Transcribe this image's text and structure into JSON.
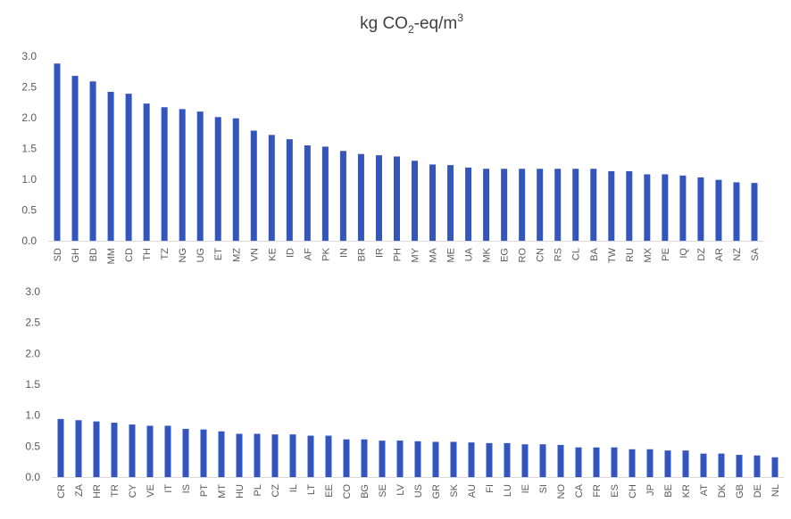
{
  "chart_data": [
    {
      "type": "bar",
      "title": "kg CO₂-eq/m³",
      "title_parts": {
        "pre": "kg CO",
        "sub": "2",
        "mid": "-eq/m",
        "sup": "3"
      },
      "ylim": [
        0,
        3.0
      ],
      "yticks": [
        "0.0",
        "0.5",
        "1.0",
        "1.5",
        "2.0",
        "2.5",
        "3.0"
      ],
      "grid": false,
      "bar_color": "#3355c0",
      "categories": [
        "SD",
        "GH",
        "BD",
        "MM",
        "CD",
        "TH",
        "TZ",
        "NG",
        "UG",
        "ET",
        "MZ",
        "VN",
        "KE",
        "ID",
        "AF",
        "PK",
        "IN",
        "BR",
        "IR",
        "PH",
        "MY",
        "MA",
        "ME",
        "UA",
        "MK",
        "EG",
        "RO",
        "CN",
        "RS",
        "CL",
        "BA",
        "TW",
        "RU",
        "MX",
        "PE",
        "IQ",
        "DZ",
        "AR",
        "NZ",
        "SA"
      ],
      "values": [
        2.88,
        2.68,
        2.59,
        2.42,
        2.39,
        2.23,
        2.17,
        2.14,
        2.1,
        2.01,
        1.99,
        1.79,
        1.72,
        1.65,
        1.55,
        1.53,
        1.46,
        1.41,
        1.39,
        1.37,
        1.3,
        1.24,
        1.23,
        1.19,
        1.17,
        1.17,
        1.17,
        1.17,
        1.17,
        1.17,
        1.17,
        1.13,
        1.13,
        1.08,
        1.08,
        1.06,
        1.03,
        0.99,
        0.95,
        0.94
      ]
    },
    {
      "type": "bar",
      "ylim": [
        0,
        3.0
      ],
      "yticks": [
        "0.0",
        "0.5",
        "1.0",
        "1.5",
        "2.0",
        "2.5",
        "3.0"
      ],
      "grid": false,
      "bar_color": "#3355c0",
      "categories": [
        "CR",
        "ZA",
        "HR",
        "TR",
        "CY",
        "VE",
        "IT",
        "IS",
        "PT",
        "MT",
        "HU",
        "PL",
        "CZ",
        "IL",
        "LT",
        "EE",
        "CO",
        "BG",
        "SE",
        "LV",
        "US",
        "GR",
        "SK",
        "AU",
        "FI",
        "LU",
        "IE",
        "SI",
        "NO",
        "CA",
        "FR",
        "ES",
        "CH",
        "JP",
        "BE",
        "KR",
        "AT",
        "DK",
        "GB",
        "DE",
        "NL"
      ],
      "values": [
        0.94,
        0.92,
        0.9,
        0.88,
        0.85,
        0.83,
        0.83,
        0.78,
        0.77,
        0.74,
        0.7,
        0.7,
        0.69,
        0.69,
        0.67,
        0.67,
        0.61,
        0.61,
        0.59,
        0.59,
        0.58,
        0.57,
        0.57,
        0.56,
        0.55,
        0.55,
        0.53,
        0.53,
        0.52,
        0.48,
        0.48,
        0.48,
        0.45,
        0.45,
        0.43,
        0.43,
        0.38,
        0.38,
        0.36,
        0.35,
        0.32
      ]
    }
  ]
}
